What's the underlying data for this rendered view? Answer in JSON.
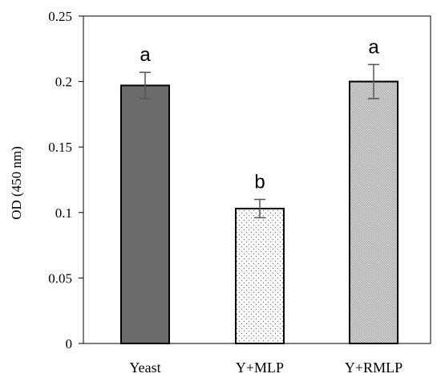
{
  "chart_data": {
    "type": "bar",
    "title": "",
    "xlabel": "",
    "ylabel": "OD (450 nm)",
    "ylim": [
      0,
      0.25
    ],
    "yticks": [
      0,
      0.05,
      0.1,
      0.15,
      0.2,
      0.25
    ],
    "ytick_labels": [
      "0",
      "0.05",
      "0.1",
      "0.15",
      "0.2",
      "0.25"
    ],
    "grid": false,
    "categories": [
      "Yeast",
      "Y+MLP",
      "Y+RMLP"
    ],
    "values": [
      0.197,
      0.103,
      0.2
    ],
    "errors": [
      0.01,
      0.007,
      0.013
    ],
    "annotations": [
      "a",
      "b",
      "a"
    ],
    "bar_fills": [
      "solid-dark-gray",
      "sparse-dots",
      "dense-dots"
    ],
    "colors": {
      "dark_bar": "#6b6b6b",
      "outline": "#000000",
      "error_bar": "#555555"
    }
  }
}
